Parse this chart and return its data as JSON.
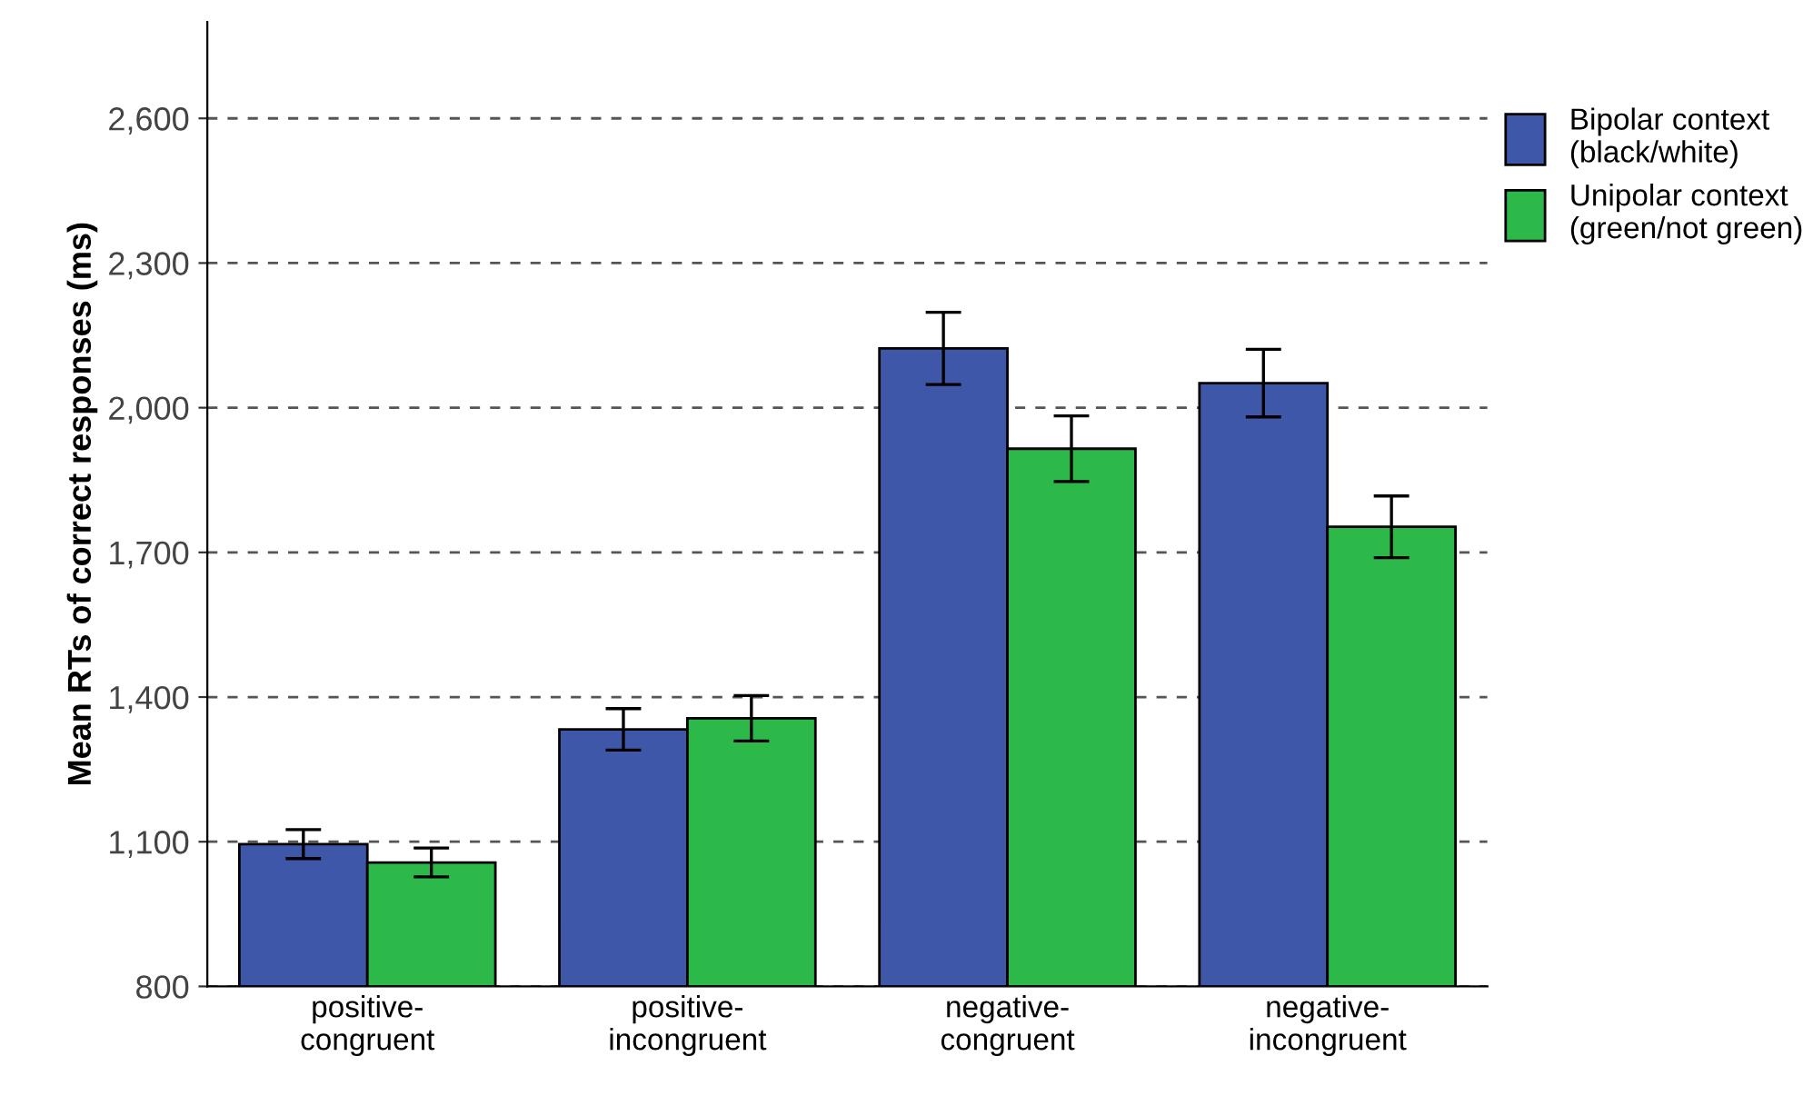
{
  "chart_data": {
    "type": "bar",
    "ylabel": "Mean RTs of correct responses (ms)",
    "categories": [
      "positive-\ncongruent",
      "positive-\nincongruent",
      "negative-\ncongruent",
      "negative-\nincongruent"
    ],
    "series": [
      {
        "name": "Bipolar context\n(black/white)",
        "color": "#3f57a8",
        "values": [
          1095,
          1333,
          2123,
          2051
        ],
        "errors": [
          30,
          43,
          75,
          70
        ]
      },
      {
        "name": "Unipolar context\n(green/not green)",
        "color": "#2db84a",
        "values": [
          1057,
          1356,
          1915,
          1753
        ],
        "errors": [
          30,
          47,
          68,
          64
        ]
      }
    ],
    "ylim": [
      800,
      2800
    ],
    "yticks": [
      {
        "value": 800,
        "label": "800"
      },
      {
        "value": 1100,
        "label": "1,100"
      },
      {
        "value": 1400,
        "label": "1,400"
      },
      {
        "value": 1700,
        "label": "1,700"
      },
      {
        "value": 2000,
        "label": "2,000"
      },
      {
        "value": 2300,
        "label": "2,300"
      },
      {
        "value": 2600,
        "label": "2,600"
      }
    ],
    "grid": "y",
    "legend": "top right"
  }
}
